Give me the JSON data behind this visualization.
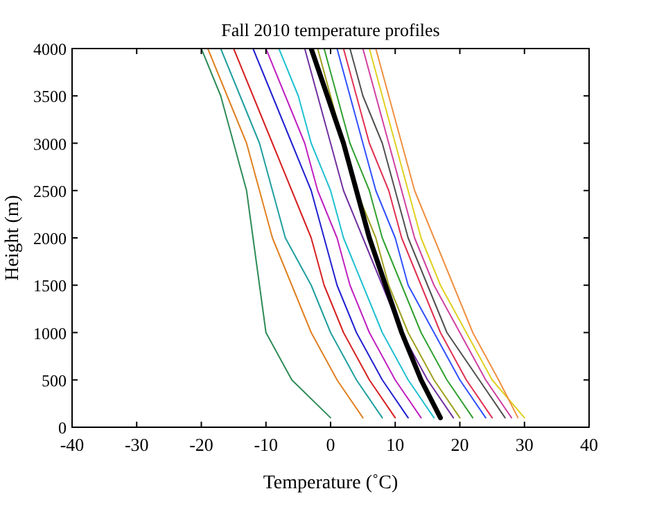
{
  "chart_data": {
    "type": "line",
    "title": "Fall 2010 temperature profiles",
    "xlabel": "Temperature (˚C)",
    "ylabel": "Height (m)",
    "xlim": [
      -40,
      40
    ],
    "xticks": [
      -40,
      -30,
      -20,
      -10,
      0,
      10,
      20,
      30,
      40
    ],
    "ylim": [
      0,
      4000
    ],
    "yticks": [
      0,
      500,
      1000,
      1500,
      2000,
      2500,
      3000,
      3500,
      4000
    ],
    "grid": false,
    "series": [
      {
        "color": "#2e8b57",
        "x": [
          0,
          -6,
          -10,
          -11,
          -12,
          -13,
          -15,
          -17,
          -20
        ],
        "values": [
          100,
          500,
          1000,
          1500,
          2000,
          2500,
          3000,
          3500,
          4000
        ]
      },
      {
        "color": "#e08020",
        "x": [
          5,
          1,
          -3,
          -6,
          -9,
          -11,
          -13,
          -16,
          -19
        ],
        "values": [
          100,
          500,
          1000,
          1500,
          2000,
          2500,
          3000,
          3500,
          4000
        ]
      },
      {
        "color": "#1f9e9e",
        "x": [
          8,
          4,
          0,
          -3,
          -7,
          -9,
          -11,
          -14,
          -17
        ],
        "values": [
          100,
          500,
          1000,
          1500,
          2000,
          2500,
          3000,
          3500,
          4000
        ]
      },
      {
        "color": "#d62020",
        "x": [
          10,
          6,
          2,
          -1,
          -3,
          -6,
          -9,
          -12,
          -15
        ],
        "values": [
          100,
          500,
          1000,
          1500,
          2000,
          2500,
          3000,
          3500,
          4000
        ]
      },
      {
        "color": "#2020d0",
        "x": [
          12,
          8,
          4,
          1,
          -1,
          -3,
          -6,
          -9,
          -12
        ],
        "values": [
          100,
          500,
          1000,
          1500,
          2000,
          2500,
          3000,
          3500,
          4000
        ]
      },
      {
        "color": "#c020c0",
        "x": [
          14,
          10,
          6,
          3,
          1,
          -2,
          -4,
          -7,
          -10
        ],
        "values": [
          100,
          500,
          1000,
          1500,
          2000,
          2500,
          3000,
          3500,
          4000
        ]
      },
      {
        "color": "#20c0d0",
        "x": [
          16,
          12,
          8,
          5,
          2,
          0,
          -3,
          -5,
          -8
        ],
        "values": [
          100,
          500,
          1000,
          1500,
          2000,
          2500,
          3000,
          3500,
          4000
        ]
      },
      {
        "color": "#7030a0",
        "x": [
          19,
          15,
          11,
          8,
          5,
          2,
          0,
          -2,
          -4
        ],
        "values": [
          100,
          500,
          1000,
          1500,
          2000,
          2500,
          3000,
          3500,
          4000
        ]
      },
      {
        "color": "#a0a020",
        "x": [
          20,
          16,
          12,
          9,
          7,
          4,
          2,
          0,
          -2
        ],
        "values": [
          100,
          500,
          1000,
          1500,
          2000,
          2500,
          3000,
          3500,
          4000
        ]
      },
      {
        "color": "#30a030",
        "x": [
          22,
          18,
          14,
          11,
          8,
          6,
          3,
          1,
          -1
        ],
        "values": [
          100,
          500,
          1000,
          1500,
          2000,
          2500,
          3000,
          3500,
          4000
        ]
      },
      {
        "color": "#3050ff",
        "x": [
          24,
          20,
          16,
          12,
          10,
          7,
          5,
          3,
          1
        ],
        "values": [
          100,
          500,
          1000,
          1500,
          2000,
          2500,
          3000,
          3500,
          4000
        ]
      },
      {
        "color": "#e03050",
        "x": [
          25,
          21,
          17,
          14,
          11,
          9,
          6,
          4,
          2
        ],
        "values": [
          100,
          500,
          1000,
          1500,
          2000,
          2500,
          3000,
          3500,
          4000
        ]
      },
      {
        "color": "#505050",
        "x": [
          27,
          23,
          18,
          15,
          12,
          10,
          8,
          5,
          3
        ],
        "values": [
          100,
          500,
          1000,
          1500,
          2000,
          2500,
          3000,
          3500,
          4000
        ]
      },
      {
        "color": "#d040a0",
        "x": [
          28,
          24,
          20,
          16,
          13,
          11,
          9,
          7,
          5
        ],
        "values": [
          100,
          500,
          1000,
          1500,
          2000,
          2500,
          3000,
          3500,
          4000
        ]
      },
      {
        "color": "#e0d020",
        "x": [
          30,
          25,
          21,
          17,
          14,
          12,
          10,
          8,
          6
        ],
        "values": [
          100,
          500,
          1000,
          1500,
          2000,
          2500,
          3000,
          3500,
          4000
        ]
      },
      {
        "color": "#f09040",
        "x": [
          29,
          26,
          22,
          19,
          16,
          13,
          11,
          9,
          7
        ],
        "values": [
          100,
          500,
          1000,
          1500,
          2000,
          2500,
          3000,
          3500,
          4000
        ]
      },
      {
        "color": "#000000",
        "x": [
          17,
          14,
          11,
          8.5,
          6,
          4,
          2,
          -0.5,
          -3
        ],
        "values": [
          100,
          500,
          1000,
          1500,
          2000,
          2500,
          3000,
          3500,
          4000
        ]
      }
    ]
  }
}
